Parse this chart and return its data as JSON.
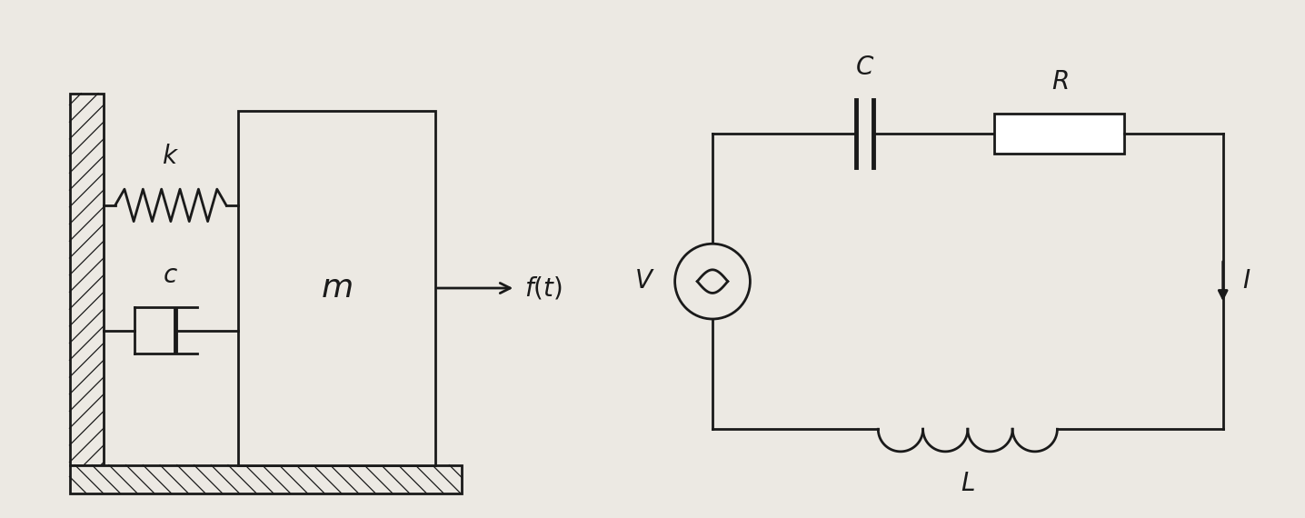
{
  "bg_color": "#ece9e3",
  "line_color": "#1a1a1a",
  "fig_width": 14.36,
  "fig_height": 5.7,
  "label_fontsize": 20,
  "label_fontfamily": "serif",
  "label_fontstyle": "italic"
}
